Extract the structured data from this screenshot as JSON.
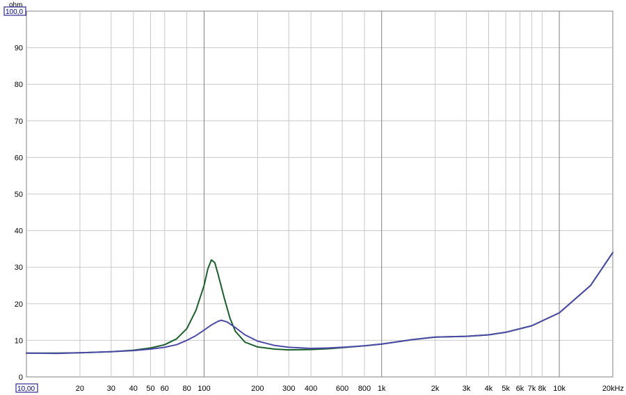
{
  "chart_data": {
    "type": "line",
    "xscale": "log",
    "xlim": [
      10,
      20000
    ],
    "ylim": [
      0,
      100
    ],
    "ylabel": "ohm",
    "grid": true,
    "y_top_label": "100,0",
    "x_left_label": "10,00",
    "y_ticks": [
      "0",
      "10",
      "20",
      "30",
      "40",
      "50",
      "60",
      "70",
      "80",
      "90"
    ],
    "y_tick_values": [
      0,
      10,
      20,
      30,
      40,
      50,
      60,
      70,
      80,
      90
    ],
    "x_ticks": [
      {
        "value": 20,
        "label": "20"
      },
      {
        "value": 30,
        "label": "30"
      },
      {
        "value": 40,
        "label": "40"
      },
      {
        "value": 50,
        "label": "50"
      },
      {
        "value": 60,
        "label": "60"
      },
      {
        "value": 80,
        "label": "80"
      },
      {
        "value": 100,
        "label": "100"
      },
      {
        "value": 200,
        "label": "200"
      },
      {
        "value": 300,
        "label": "300"
      },
      {
        "value": 400,
        "label": "400"
      },
      {
        "value": 600,
        "label": "600"
      },
      {
        "value": 800,
        "label": "800"
      },
      {
        "value": 1000,
        "label": "1k"
      },
      {
        "value": 2000,
        "label": "2k"
      },
      {
        "value": 3000,
        "label": "3k"
      },
      {
        "value": 4000,
        "label": "4k"
      },
      {
        "value": 5000,
        "label": "5k"
      },
      {
        "value": 6000,
        "label": "6k"
      },
      {
        "value": 7000,
        "label": "7k"
      },
      {
        "value": 8000,
        "label": "8k"
      },
      {
        "value": 10000,
        "label": "10k"
      },
      {
        "value": 20000,
        "label": "20kHz"
      }
    ],
    "series": [
      {
        "color": "#1a5e2a",
        "points": [
          [
            10,
            6.5
          ],
          [
            15,
            6.5
          ],
          [
            20,
            6.6
          ],
          [
            30,
            6.9
          ],
          [
            40,
            7.3
          ],
          [
            50,
            7.9
          ],
          [
            60,
            8.8
          ],
          [
            70,
            10.4
          ],
          [
            80,
            13.2
          ],
          [
            90,
            18.2
          ],
          [
            100,
            25.0
          ],
          [
            105,
            29.5
          ],
          [
            110,
            32.0
          ],
          [
            115,
            31.2
          ],
          [
            120,
            28.0
          ],
          [
            130,
            21.5
          ],
          [
            140,
            16.0
          ],
          [
            150,
            12.5
          ],
          [
            170,
            9.5
          ],
          [
            200,
            8.2
          ],
          [
            250,
            7.6
          ],
          [
            300,
            7.4
          ],
          [
            400,
            7.5
          ],
          [
            500,
            7.7
          ],
          [
            600,
            8.0
          ],
          [
            800,
            8.5
          ],
          [
            1000,
            9.0
          ],
          [
            1500,
            10.2
          ],
          [
            2000,
            10.9
          ],
          [
            3000,
            11.1
          ],
          [
            4000,
            11.5
          ],
          [
            5000,
            12.2
          ],
          [
            7000,
            14.0
          ],
          [
            10000,
            17.5
          ],
          [
            15000,
            25.0
          ],
          [
            20000,
            34.0
          ]
        ]
      },
      {
        "color": "#4a4aa8",
        "points": [
          [
            10,
            6.5
          ],
          [
            15,
            6.4
          ],
          [
            20,
            6.6
          ],
          [
            30,
            6.9
          ],
          [
            40,
            7.2
          ],
          [
            50,
            7.6
          ],
          [
            60,
            8.1
          ],
          [
            70,
            8.8
          ],
          [
            80,
            10.0
          ],
          [
            90,
            11.3
          ],
          [
            100,
            12.8
          ],
          [
            110,
            14.2
          ],
          [
            120,
            15.2
          ],
          [
            125,
            15.5
          ],
          [
            135,
            15.0
          ],
          [
            150,
            13.5
          ],
          [
            170,
            11.5
          ],
          [
            200,
            9.8
          ],
          [
            250,
            8.6
          ],
          [
            300,
            8.1
          ],
          [
            400,
            7.8
          ],
          [
            500,
            7.9
          ],
          [
            600,
            8.1
          ],
          [
            800,
            8.5
          ],
          [
            1000,
            9.0
          ],
          [
            1500,
            10.2
          ],
          [
            2000,
            10.9
          ],
          [
            3000,
            11.1
          ],
          [
            4000,
            11.5
          ],
          [
            5000,
            12.2
          ],
          [
            7000,
            14.0
          ],
          [
            10000,
            17.5
          ],
          [
            15000,
            25.0
          ],
          [
            20000,
            34.0
          ]
        ]
      }
    ]
  }
}
